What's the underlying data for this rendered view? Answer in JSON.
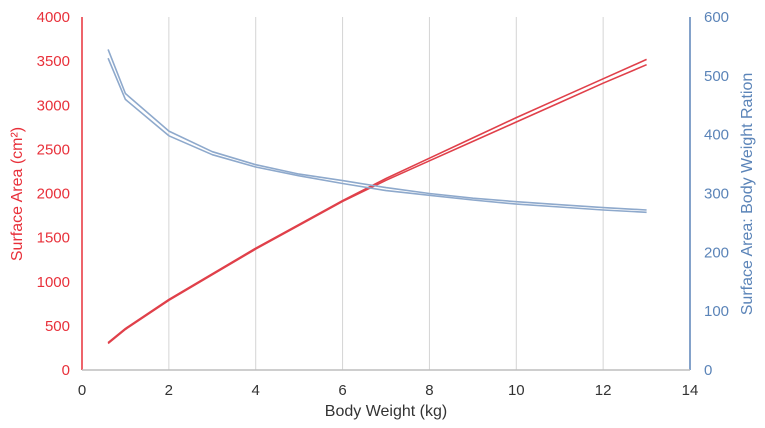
{
  "chart_data": {
    "type": "line",
    "xlabel": "Body Weight (kg)",
    "ylabel_left": "Surface Area (cm²)",
    "ylabel_right": "Surface Area: Body Weight Ration",
    "x_ticks": [
      "0",
      "2",
      "4",
      "6",
      "8",
      "10",
      "12",
      "14"
    ],
    "y_left_ticks": [
      "0",
      "500",
      "1000",
      "1500",
      "2000",
      "2500",
      "3000",
      "3500",
      "4000"
    ],
    "y_right_ticks": [
      "0",
      "100",
      "200",
      "300",
      "400",
      "500",
      "600"
    ],
    "xlim": [
      0,
      14
    ],
    "ylim_left": [
      0,
      4000
    ],
    "ylim_right": [
      0,
      600
    ],
    "grid": "vertical",
    "colors": {
      "left_axis": "#e8303a",
      "right_axis": "#5b84b8",
      "surface_area_line": "#e0404a",
      "ratio_line": "#8ea9cc",
      "grid": "#d4d4d4"
    },
    "series": [
      {
        "axis": "left",
        "x": [
          0.6,
          1,
          2,
          3,
          4,
          5,
          6,
          7,
          8,
          9,
          10,
          11,
          12,
          13
        ],
        "values": [
          310,
          470,
          800,
          1090,
          1380,
          1650,
          1920,
          2170,
          2400,
          2630,
          2860,
          3080,
          3300,
          3520
        ]
      },
      {
        "axis": "left",
        "x": [
          0.6,
          1,
          2,
          3,
          4,
          5,
          6,
          7,
          8,
          9,
          10,
          11,
          12,
          13
        ],
        "values": [
          300,
          460,
          790,
          1080,
          1370,
          1640,
          1910,
          2150,
          2370,
          2590,
          2810,
          3030,
          3250,
          3460
        ]
      },
      {
        "axis": "right",
        "x": [
          0.6,
          1,
          2,
          3,
          4,
          5,
          6,
          7,
          8,
          9,
          10,
          11,
          12,
          13
        ],
        "values": [
          545,
          470,
          406,
          371,
          349,
          333,
          322,
          310,
          300,
          292,
          286,
          281,
          276,
          272
        ]
      },
      {
        "axis": "right",
        "x": [
          0.6,
          1,
          2,
          3,
          4,
          5,
          6,
          7,
          8,
          9,
          10,
          11,
          12,
          13
        ],
        "values": [
          530,
          460,
          398,
          366,
          345,
          330,
          317,
          305,
          297,
          289,
          282,
          277,
          272,
          268
        ]
      }
    ]
  }
}
